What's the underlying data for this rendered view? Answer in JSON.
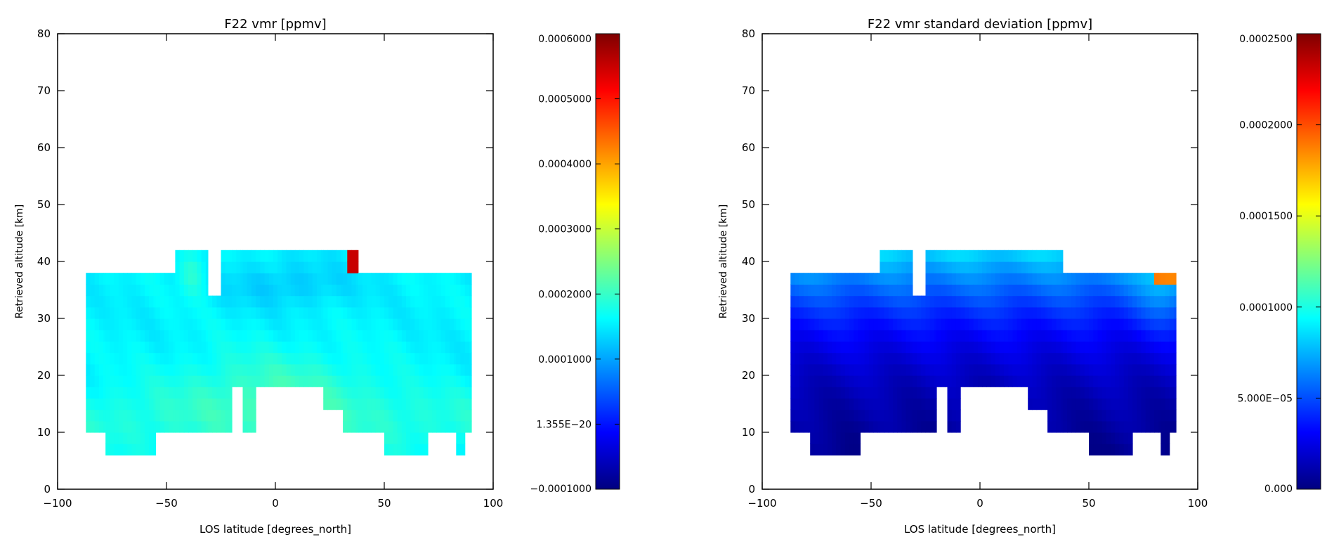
{
  "chart_data": [
    {
      "type": "heatmap",
      "title": "F22 vmr [ppmv]",
      "xlabel": "LOS latitude [degrees_north]",
      "ylabel": "Retrieved altitude [km]",
      "xlim": [
        -100,
        100
      ],
      "ylim": [
        0,
        80
      ],
      "x_ticks": [
        "−100",
        "−50",
        "0",
        "50",
        "100"
      ],
      "y_ticks": [
        "0",
        "10",
        "20",
        "30",
        "40",
        "50",
        "60",
        "70",
        "80"
      ],
      "colorbar": {
        "min": -0.0001,
        "max": 0.0006,
        "tick_values": [
          -0.0001,
          0.0,
          0.0001,
          0.0002,
          0.0003,
          0.0004,
          0.0005,
          0.0006
        ],
        "tick_labels": [
          "−0.0001000",
          "1.355E−20",
          "0.0001000",
          "0.0002000",
          "0.0003000",
          "0.0004000",
          "0.0005000",
          "0.0006000"
        ]
      },
      "colormap": "jet",
      "field": "vmr",
      "notable_features": {
        "max_cell": {
          "lat": 36,
          "alt": 40,
          "value": 0.00055
        },
        "value_range_typical": [
          0.00012,
          0.00022
        ]
      }
    },
    {
      "type": "heatmap",
      "title": "F22 vmr standard deviation [ppmv]",
      "xlabel": "LOS latitude [degrees_north]",
      "ylabel": "Retrieved altitude [km]",
      "xlim": [
        -100,
        100
      ],
      "ylim": [
        0,
        80
      ],
      "x_ticks": [
        "−100",
        "−50",
        "0",
        "50",
        "100"
      ],
      "y_ticks": [
        "0",
        "10",
        "20",
        "30",
        "40",
        "50",
        "60",
        "70",
        "80"
      ],
      "colorbar": {
        "min": 0.0,
        "max": 0.00025,
        "tick_values": [
          0.0,
          5e-05,
          0.0001,
          0.00015,
          0.0002,
          0.00025
        ],
        "tick_labels": [
          "0.000",
          "5.000E−05",
          "0.0001000",
          "0.0001500",
          "0.0002000",
          "0.0002500"
        ]
      },
      "colormap": "jet",
      "field": "std",
      "notable_features": {
        "max_cell": {
          "lat": 88,
          "alt": 38,
          "value": 0.00022
        },
        "value_range_typical": [
          5e-06,
          0.0001
        ]
      }
    }
  ],
  "coverage": {
    "columns": [
      {
        "lat": [
          -87,
          -78
        ],
        "alt": [
          10,
          38
        ]
      },
      {
        "lat": [
          -78,
          -55
        ],
        "alt": [
          6,
          38
        ]
      },
      {
        "lat": [
          -55,
          -46
        ],
        "alt": [
          10,
          38
        ]
      },
      {
        "lat": [
          -46,
          -31
        ],
        "alt": [
          10,
          42
        ]
      },
      {
        "lat": [
          -31,
          -25
        ],
        "alt": [
          10,
          34
        ]
      },
      {
        "lat": [
          -25,
          -20
        ],
        "alt": [
          10,
          42
        ]
      },
      {
        "lat": [
          -20,
          -15
        ],
        "alt": [
          18,
          42
        ]
      },
      {
        "lat": [
          -15,
          -9
        ],
        "alt": [
          10,
          42
        ]
      },
      {
        "lat": [
          -9,
          -1
        ],
        "alt": [
          18,
          42
        ]
      },
      {
        "lat": [
          -1,
          22
        ],
        "alt": [
          18,
          42
        ]
      },
      {
        "lat": [
          22,
          31
        ],
        "alt": [
          14,
          42
        ]
      },
      {
        "lat": [
          31,
          38
        ],
        "alt": [
          10,
          42
        ]
      },
      {
        "lat": [
          38,
          50
        ],
        "alt": [
          10,
          38
        ]
      },
      {
        "lat": [
          50,
          70
        ],
        "alt": [
          6,
          38
        ]
      },
      {
        "lat": [
          70,
          83
        ],
        "alt": [
          10,
          38
        ]
      },
      {
        "lat": [
          83,
          87
        ],
        "alt": [
          6,
          38
        ]
      },
      {
        "lat": [
          87,
          90
        ],
        "alt": [
          10,
          38
        ]
      }
    ]
  }
}
